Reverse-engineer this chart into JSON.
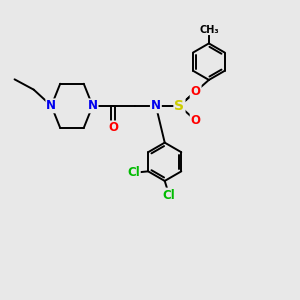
{
  "background_color": "#e8e8e8",
  "bond_color": "#000000",
  "atom_colors": {
    "N": "#0000ee",
    "O": "#ff0000",
    "S": "#cccc00",
    "Cl": "#00bb00",
    "C": "#000000"
  },
  "font_size_atom": 8.5,
  "font_size_small": 7.5,
  "lw": 1.4
}
